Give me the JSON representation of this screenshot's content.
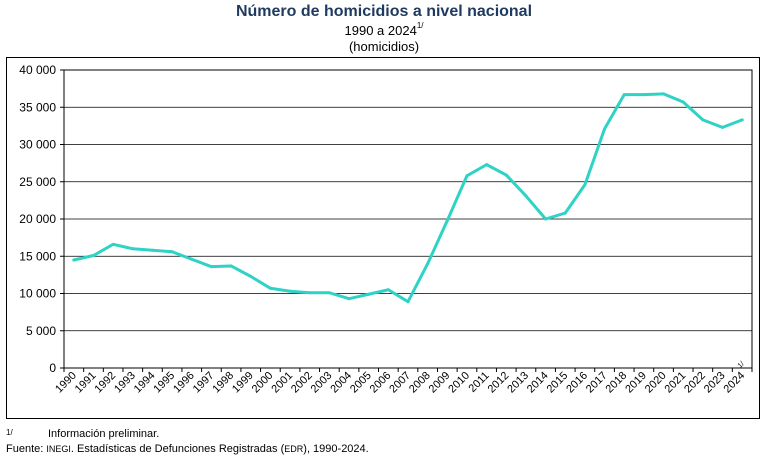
{
  "header": {
    "title": "Número de homicidios a nivel nacional",
    "subtitle": "1990 a 2024",
    "subtitle_sup": "1/",
    "unit": "(homicidios)"
  },
  "footer": {
    "note_marker": "1/",
    "note_text": "Información preliminar.",
    "source_prefix": "Fuente: ",
    "source_org": "INEGI",
    "source_mid": ". Estadísticas de Defunciones Registradas (",
    "source_abbr": "EDR",
    "source_end": "), 1990-2024."
  },
  "chart_data": {
    "type": "line",
    "title": "Número de homicidios a nivel nacional",
    "xlabel": "",
    "ylabel": "",
    "ylim": [
      0,
      40000
    ],
    "yticks": [
      0,
      5000,
      10000,
      15000,
      20000,
      25000,
      30000,
      35000,
      40000
    ],
    "ytick_labels": [
      "0",
      "5 000",
      "10 000",
      "15 000",
      "20 000",
      "25 000",
      "30 000",
      "35 000",
      "40 000"
    ],
    "categories": [
      "1990",
      "1991",
      "1992",
      "1993",
      "1994",
      "1995",
      "1996",
      "1997",
      "1998",
      "1999",
      "2000",
      "2001",
      "2002",
      "2003",
      "2004",
      "2005",
      "2006",
      "2007",
      "2008",
      "2009",
      "2010",
      "2011",
      "2012",
      "2013",
      "2014",
      "2015",
      "2016",
      "2017",
      "2018",
      "2019",
      "2020",
      "2021",
      "2022",
      "2023",
      "2024"
    ],
    "last_category_sup": "1/",
    "grid": true,
    "series": [
      {
        "values": [
          14500,
          15100,
          16600,
          16000,
          15800,
          15600,
          14600,
          13600,
          13700,
          12300,
          10700,
          10300,
          10100,
          10100,
          9300,
          9900,
          10500,
          8900,
          14000,
          19800,
          25800,
          27300,
          25900,
          23100,
          20000,
          20800,
          24600,
          32100,
          36700,
          36700,
          36800,
          35700,
          33300,
          32300,
          33300
        ],
        "color": "#2ed3c6"
      }
    ]
  }
}
